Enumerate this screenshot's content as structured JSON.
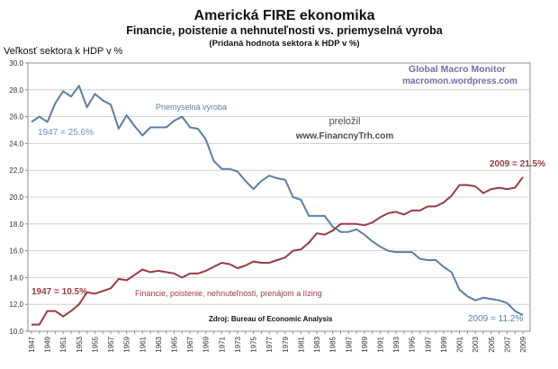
{
  "chart_data": {
    "type": "line",
    "title": "Americká FIRE ekonomika",
    "subtitle": "Financie, poistenie a nehnuteľnosti vs. priemyselná vyroba",
    "subtitle2": "(Pridaná hodnota sektora k HDP v %)",
    "ylabel": "Veľkosť sektora k HDP v %",
    "xlabel": "",
    "ylim": [
      10,
      30
    ],
    "yticks": [
      "10.0",
      "12.0",
      "14.0",
      "16.0",
      "18.0",
      "20.0",
      "22.0",
      "24.0",
      "26.0",
      "28.0",
      "30.0"
    ],
    "xticks": [
      "1947",
      "1949",
      "1951",
      "1953",
      "1955",
      "1957",
      "1959",
      "1961",
      "1963",
      "1965",
      "1967",
      "1969",
      "1971",
      "1973",
      "1975",
      "1977",
      "1979",
      "1981",
      "1983",
      "1985",
      "1987",
      "1989",
      "1991",
      "1993",
      "1995",
      "1997",
      "1999",
      "2001",
      "2003",
      "2005",
      "2007",
      "2009"
    ],
    "x": [
      1947,
      1948,
      1949,
      1950,
      1951,
      1952,
      1953,
      1954,
      1955,
      1956,
      1957,
      1958,
      1959,
      1960,
      1961,
      1962,
      1963,
      1964,
      1965,
      1966,
      1967,
      1968,
      1969,
      1970,
      1971,
      1972,
      1973,
      1974,
      1975,
      1976,
      1977,
      1978,
      1979,
      1980,
      1981,
      1982,
      1983,
      1984,
      1985,
      1986,
      1987,
      1988,
      1989,
      1990,
      1991,
      1992,
      1993,
      1994,
      1995,
      1996,
      1997,
      1998,
      1999,
      2000,
      2001,
      2002,
      2003,
      2004,
      2005,
      2006,
      2007,
      2008,
      2009
    ],
    "grid": true,
    "series": [
      {
        "name": "Priemyselná výroba",
        "color": "#5a7fa6",
        "values": [
          25.6,
          26.0,
          25.6,
          27.0,
          27.9,
          27.5,
          28.3,
          26.7,
          27.7,
          27.2,
          26.9,
          25.1,
          26.1,
          25.3,
          24.6,
          25.2,
          25.2,
          25.2,
          25.7,
          26.0,
          25.2,
          25.1,
          24.3,
          22.7,
          22.1,
          22.1,
          21.9,
          21.2,
          20.6,
          21.2,
          21.6,
          21.4,
          21.3,
          20.0,
          19.8,
          18.6,
          18.6,
          18.6,
          17.8,
          17.4,
          17.4,
          17.6,
          17.2,
          16.7,
          16.3,
          16.0,
          15.9,
          15.9,
          15.9,
          15.4,
          15.3,
          15.3,
          14.8,
          14.4,
          13.1,
          12.6,
          12.3,
          12.5,
          12.4,
          12.3,
          12.1,
          11.5,
          11.2
        ]
      },
      {
        "name": "Financie, poistenie, nehnuteľnosti, prenájom a lízing",
        "color": "#9a3b43",
        "values": [
          10.5,
          10.5,
          11.5,
          11.5,
          11.1,
          11.5,
          12.0,
          12.9,
          12.8,
          13.0,
          13.2,
          13.9,
          13.8,
          14.2,
          14.6,
          14.4,
          14.5,
          14.4,
          14.3,
          14.0,
          14.3,
          14.3,
          14.5,
          14.8,
          15.1,
          15.0,
          14.7,
          14.9,
          15.2,
          15.1,
          15.1,
          15.3,
          15.5,
          16.0,
          16.1,
          16.6,
          17.3,
          17.2,
          17.5,
          18.0,
          18.0,
          18.0,
          17.9,
          18.1,
          18.5,
          18.8,
          18.9,
          18.7,
          19.0,
          19.0,
          19.3,
          19.3,
          19.6,
          20.1,
          20.9,
          20.9,
          20.8,
          20.3,
          20.6,
          20.7,
          20.6,
          20.7,
          21.5
        ]
      }
    ]
  },
  "annotations": {
    "manufacturing_label": "Priemyselná výroba",
    "fire_label": "Financie, poistenie, nehnuteľnosti, prenájom a lízing",
    "blue_start": "1947 = 25.6%",
    "red_start": "1947 = 10.5%",
    "red_end": "2009 = 21.5%",
    "blue_end": "2009 = 11.2%",
    "gmm_line1": "Global Macro Monitor",
    "gmm_line2": "macromon.wordpress.com",
    "translated_line1": "preložil",
    "translated_line2": "www.FinancnyTrh.com",
    "source": "Zdroj: Bureau of Economic Analysis"
  }
}
